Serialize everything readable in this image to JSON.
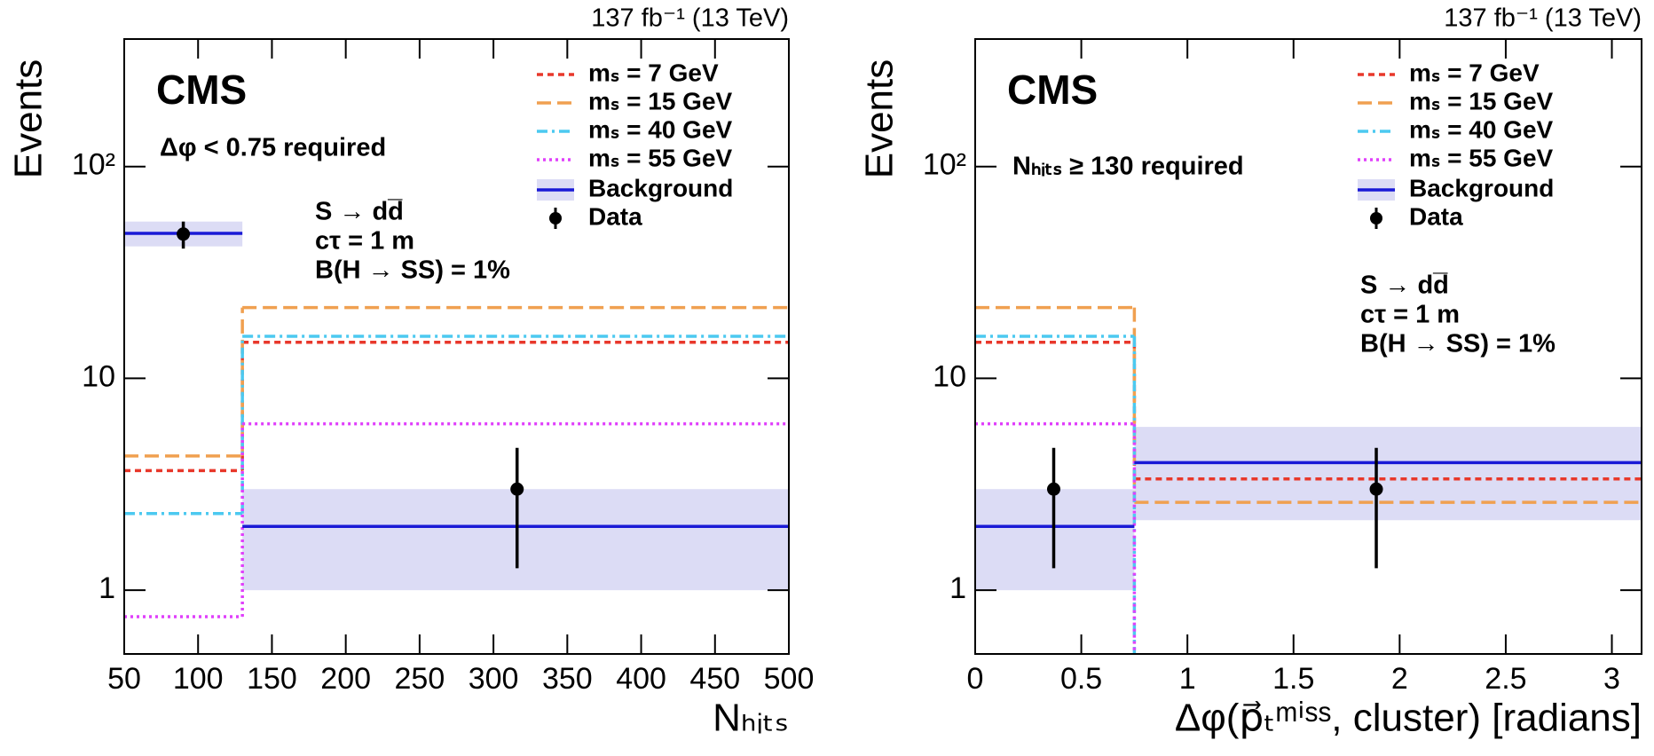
{
  "chart_data": [
    {
      "type": "histogram",
      "top_label": "137 fb⁻¹ (13 TeV)",
      "experiment": "CMS",
      "annotation": "Δφ < 0.75 required",
      "signal_text": [
        "S → dd̅",
        "cτ = 1 m",
        "B(H → SS) = 1%"
      ],
      "xlabel": "Nₕᵢₜₛ",
      "ylabel": "Events",
      "log_y": true,
      "bins": [
        50,
        130,
        500
      ],
      "xlim": [
        50,
        500
      ],
      "xticks": [
        50,
        100,
        150,
        200,
        250,
        300,
        350,
        400,
        450,
        500
      ],
      "ylim": [
        0.5,
        400
      ],
      "yticks": [
        1,
        10,
        {
          "value": 100,
          "label": "10²"
        }
      ],
      "series": [
        {
          "name": "mₛ = 7 GeV",
          "color": "#e8382b",
          "values": [
            3.67,
            14.8
          ]
        },
        {
          "name": "mₛ = 15 GeV",
          "color": "#f0a050",
          "values": [
            4.3,
            21.6
          ]
        },
        {
          "name": "mₛ = 40 GeV",
          "color": "#4cc9f0",
          "values": [
            2.3,
            15.8
          ]
        },
        {
          "name": "mₛ = 55 GeV",
          "color": "#e040fb",
          "values": [
            0.75,
            6.1
          ]
        }
      ],
      "background": {
        "name": "Background",
        "color": "#1a1ad6",
        "band_color": "#dcdcf5",
        "values": [
          48.4,
          2.0
        ],
        "lower": [
          42,
          1.0
        ],
        "upper": [
          55,
          3.0
        ]
      },
      "data": {
        "name": "Data",
        "color": "#000000",
        "x": [
          90,
          316
        ],
        "values": [
          48,
          3
        ],
        "lower": [
          41,
          1.27
        ],
        "upper": [
          55,
          4.7
        ]
      }
    },
    {
      "type": "histogram",
      "top_label": "137 fb⁻¹ (13 TeV)",
      "experiment": "CMS",
      "annotation": "Nₕᵢₜₛ ≥ 130 required",
      "signal_text": [
        "S → dd̅",
        "cτ = 1 m",
        "B(H → SS) = 1%"
      ],
      "xlabel": "Δφ(p⃗ₜᵐⁱˢˢ, cluster) [radians]",
      "ylabel": "Events",
      "log_y": true,
      "bins": [
        0,
        0.75,
        3.14
      ],
      "xlim": [
        0,
        3.14
      ],
      "xticks": [
        0,
        0.5,
        1,
        1.5,
        2,
        2.5,
        3
      ],
      "ylim": [
        0.5,
        400
      ],
      "yticks": [
        1,
        10,
        {
          "value": 100,
          "label": "10²"
        }
      ],
      "series": [
        {
          "name": "mₛ = 7 GeV",
          "color": "#e8382b",
          "values": [
            14.8,
            3.35
          ]
        },
        {
          "name": "mₛ = 15 GeV",
          "color": "#f0a050",
          "values": [
            21.6,
            2.6
          ]
        },
        {
          "name": "mₛ = 40 GeV",
          "color": "#4cc9f0",
          "values": [
            15.8,
            0
          ]
        },
        {
          "name": "mₛ = 55 GeV",
          "color": "#e040fb",
          "values": [
            6.1,
            0
          ]
        }
      ],
      "background": {
        "name": "Background",
        "color": "#1a1ad6",
        "band_color": "#dcdcf5",
        "values": [
          2.0,
          4.0
        ],
        "lower": [
          1.0,
          2.14
        ],
        "upper": [
          3.0,
          5.9
        ]
      },
      "data": {
        "name": "Data",
        "color": "#000000",
        "x": [
          0.37,
          1.89
        ],
        "values": [
          3,
          3
        ],
        "lower": [
          1.27,
          1.27
        ],
        "upper": [
          4.7,
          4.7
        ]
      }
    }
  ]
}
